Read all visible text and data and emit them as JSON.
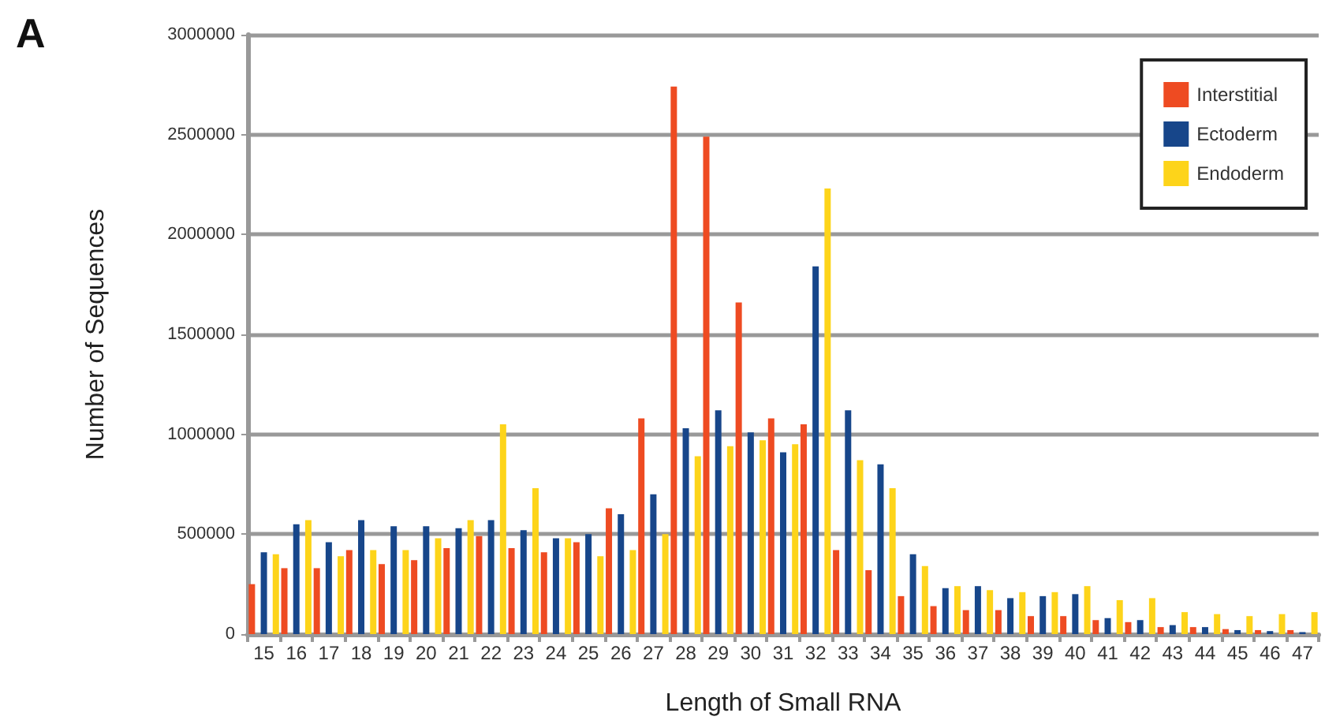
{
  "chart_data": {
    "type": "bar",
    "annotations": [
      "A"
    ],
    "xlabel": "Length of Small RNA",
    "ylabel": "Number of Sequences",
    "categories": [
      "15",
      "16",
      "17",
      "18",
      "19",
      "20",
      "21",
      "22",
      "23",
      "24",
      "25",
      "26",
      "27",
      "28",
      "29",
      "30",
      "31",
      "32",
      "33",
      "34",
      "35",
      "36",
      "37",
      "38",
      "39",
      "40",
      "41",
      "42",
      "43",
      "44",
      "45",
      "46",
      "47"
    ],
    "series": [
      {
        "name": "Interstitial",
        "color": "#ee4b22",
        "values": [
          250000,
          330000,
          330000,
          420000,
          350000,
          370000,
          430000,
          490000,
          430000,
          410000,
          460000,
          630000,
          1080000,
          2740000,
          2490000,
          1660000,
          1080000,
          1050000,
          420000,
          320000,
          190000,
          140000,
          120000,
          120000,
          90000,
          90000,
          70000,
          60000,
          35000,
          35000,
          25000,
          20000,
          20000
        ]
      },
      {
        "name": "Ectoderm",
        "color": "#17468a",
        "values": [
          410000,
          550000,
          460000,
          570000,
          540000,
          540000,
          530000,
          570000,
          520000,
          480000,
          500000,
          600000,
          700000,
          1030000,
          1120000,
          1010000,
          910000,
          1840000,
          1120000,
          850000,
          400000,
          230000,
          240000,
          180000,
          190000,
          200000,
          80000,
          70000,
          45000,
          35000,
          20000,
          15000,
          10000
        ]
      },
      {
        "name": "Endoderm",
        "color": "#fdd41a",
        "values": [
          400000,
          570000,
          390000,
          420000,
          420000,
          480000,
          570000,
          1050000,
          730000,
          480000,
          390000,
          420000,
          500000,
          890000,
          940000,
          970000,
          950000,
          2230000,
          870000,
          730000,
          340000,
          240000,
          220000,
          210000,
          210000,
          240000,
          170000,
          180000,
          110000,
          100000,
          90000,
          100000,
          110000
        ]
      }
    ],
    "ylim": [
      0,
      3000000
    ],
    "yticks": [
      0,
      500000,
      1000000,
      1500000,
      2000000,
      2500000,
      3000000
    ],
    "grid": "y",
    "legend": "top right"
  }
}
